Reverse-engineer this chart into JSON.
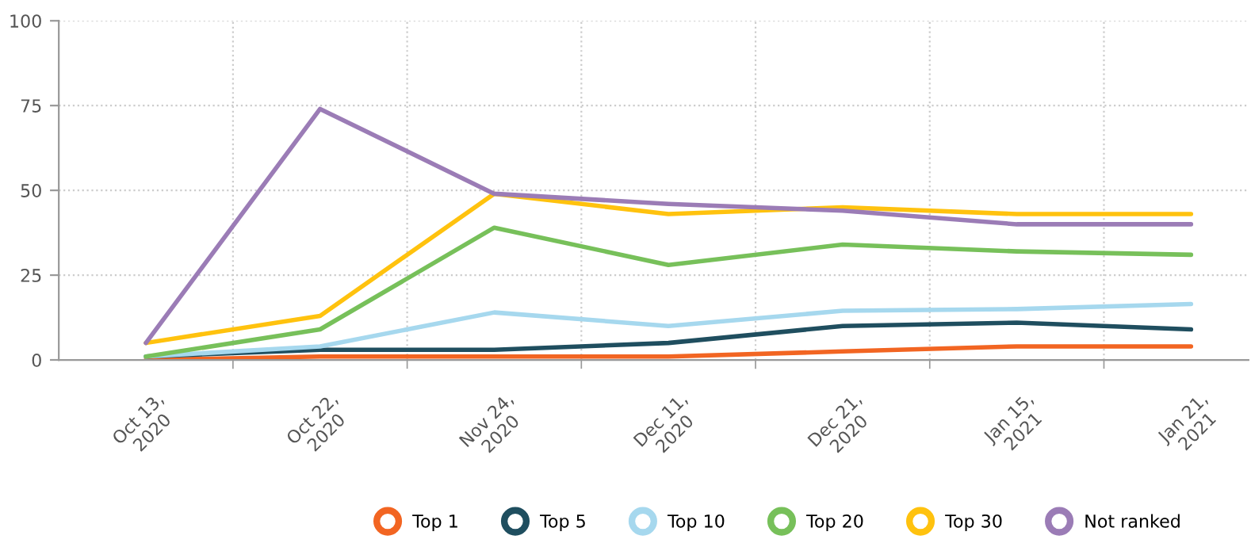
{
  "chart_data": {
    "type": "line",
    "categories": [
      "Oct 13,\n2020",
      "Oct 22,\n2020",
      "Nov 24,\n2020",
      "Dec 11,\n2020",
      "Dec 21,\n2020",
      "Jan 15,\n2021",
      "Jan 21,\n2021"
    ],
    "series": [
      {
        "name": "Top 1",
        "color": "#f26522",
        "values": [
          0,
          1,
          1,
          1,
          2.5,
          4,
          4
        ]
      },
      {
        "name": "Top 5",
        "color": "#1f4e5f",
        "values": [
          1,
          3,
          3,
          5,
          10,
          11,
          9
        ]
      },
      {
        "name": "Top 10",
        "color": "#a6d8ee",
        "values": [
          1,
          4,
          14,
          10,
          14.5,
          15,
          16.5
        ]
      },
      {
        "name": "Top 20",
        "color": "#77c05a",
        "values": [
          1,
          9,
          39,
          28,
          34,
          32,
          31
        ]
      },
      {
        "name": "Top 30",
        "color": "#ffc20e",
        "values": [
          5,
          13,
          49,
          43,
          45,
          43,
          43
        ]
      },
      {
        "name": "Not ranked",
        "color": "#9b7cb6",
        "values": [
          5,
          74,
          49,
          46,
          44,
          40,
          40
        ]
      }
    ],
    "ylim": [
      0,
      100
    ],
    "yticks": [
      0,
      25,
      50,
      75,
      100
    ],
    "grid": true,
    "legend": "bottom",
    "marker": "none",
    "line_style": "solid"
  }
}
